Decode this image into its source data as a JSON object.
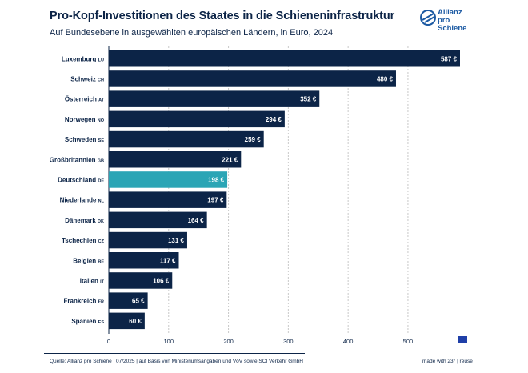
{
  "header": {
    "title": "Pro-Kopf-Investitionen des Staates in die Schieneninfrastruktur",
    "subtitle": "Auf Bundesebene in ausgewählten europäischen Ländern, in Euro, 2024"
  },
  "logo": {
    "line1": "Allianz",
    "line2": "pro Schiene",
    "color": "#1c5aa3"
  },
  "chart_data": {
    "type": "bar",
    "orientation": "horizontal",
    "categories": [
      "Luxemburg",
      "Schweiz",
      "Österreich",
      "Norwegen",
      "Schweden",
      "Großbritannien",
      "Deutschland",
      "Niederlande",
      "Dänemark",
      "Tschechien",
      "Belgien",
      "Italien",
      "Frankreich",
      "Spanien"
    ],
    "country_codes": [
      "LU",
      "CH",
      "AT",
      "NO",
      "SE",
      "GB",
      "DE",
      "NL",
      "DK",
      "CZ",
      "BE",
      "IT",
      "FR",
      "ES"
    ],
    "values": [
      587,
      480,
      352,
      294,
      259,
      221,
      198,
      197,
      164,
      131,
      117,
      106,
      65,
      60
    ],
    "value_labels": [
      "587 €",
      "480 €",
      "352 €",
      "294 €",
      "259 €",
      "221 €",
      "198 €",
      "197 €",
      "164 €",
      "131 €",
      "117 €",
      "106 €",
      "65 €",
      "60 €"
    ],
    "highlight": "Deutschland",
    "xlim": [
      0,
      600
    ],
    "xticks": [
      0,
      100,
      200,
      300,
      400,
      500
    ],
    "grid": true,
    "colors": {
      "bar": "#0c2447",
      "highlight": "#2ba5b5",
      "grid": "#c8c8c8",
      "flag": "#1f3fa8"
    }
  },
  "footer": {
    "source": "Quelle: Allianz pro Schiene | 07/2025 | auf Basis von Ministeriumsangaben und VöV sowie SCI Verkehr GmbH",
    "made_with": "made with 23° | reuse"
  }
}
